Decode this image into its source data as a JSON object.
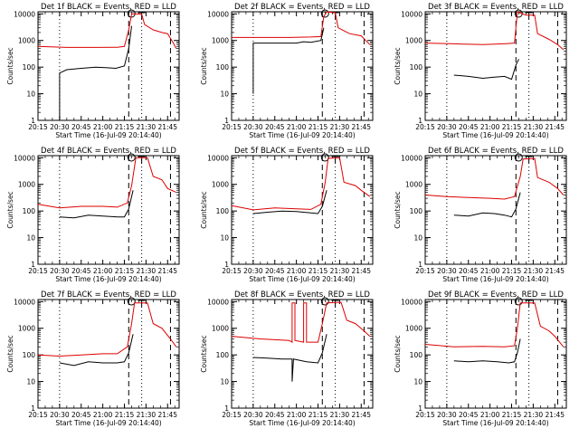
{
  "figure": {
    "title_template": "Det {n}f BLACK = Events, RED = LLD",
    "xlabel": "Start Time (16-Jul-09 20:14:40)",
    "ylabel": "Counts/sec"
  },
  "chart_data": {
    "type": "line",
    "x_ticks": [
      "20:15",
      "20:30",
      "20:45",
      "21:00",
      "21:15",
      "21:30",
      "21:45"
    ],
    "x_tick_minutes": [
      0,
      15,
      30,
      45,
      60,
      75,
      90
    ],
    "x_range_minutes": [
      0,
      98
    ],
    "y_scale": "log",
    "y_range": [
      1,
      12000
    ],
    "y_ticks": [
      "1",
      "10",
      "100",
      "1000",
      "10000"
    ],
    "y_tick_values": [
      1,
      10,
      100,
      1000,
      10000
    ],
    "vertical_lines": [
      {
        "style": "dotted",
        "minute": 15
      },
      {
        "style": "dashed",
        "minute": 63
      },
      {
        "style": "dotted",
        "minute": 72
      },
      {
        "style": "dashed",
        "minute": 92
      }
    ],
    "colors": {
      "events": "#000000",
      "lld": "#dd0000"
    },
    "panels": [
      {
        "title": "Det 1f BLACK = Events, RED = LLD",
        "events": [
          [
            15,
            1
          ],
          [
            15,
            60
          ],
          [
            20,
            80
          ],
          [
            30,
            90
          ],
          [
            40,
            100
          ],
          [
            47,
            95
          ],
          [
            54,
            90
          ],
          [
            60,
            110
          ],
          [
            63,
            500
          ],
          [
            65,
            3500
          ]
        ],
        "lld": [
          [
            0,
            600
          ],
          [
            20,
            550
          ],
          [
            40,
            550
          ],
          [
            55,
            560
          ],
          [
            60,
            600
          ],
          [
            63,
            2500
          ],
          [
            65,
            10000
          ],
          [
            72,
            9800
          ],
          [
            74,
            4000
          ],
          [
            80,
            2500
          ],
          [
            86,
            2000
          ],
          [
            90,
            1800
          ],
          [
            94,
            800
          ],
          [
            96,
            500
          ]
        ]
      },
      {
        "title": "Det 2f BLACK = Events, RED = LLD",
        "events": [
          [
            15,
            10
          ],
          [
            15,
            800
          ],
          [
            30,
            800
          ],
          [
            45,
            800
          ],
          [
            50,
            900
          ],
          [
            55,
            850
          ],
          [
            62,
            1000
          ],
          [
            64,
            3000
          ]
        ],
        "lld": [
          [
            0,
            1300
          ],
          [
            20,
            1300
          ],
          [
            40,
            1300
          ],
          [
            55,
            1350
          ],
          [
            62,
            1400
          ],
          [
            64,
            8000
          ],
          [
            66,
            12000
          ],
          [
            72,
            11000
          ],
          [
            74,
            3000
          ],
          [
            82,
            1800
          ],
          [
            90,
            1500
          ],
          [
            96,
            700
          ]
        ]
      },
      {
        "title": "Det 3f BLACK = Events, RED = LLD",
        "events": [
          [
            20,
            50
          ],
          [
            30,
            45
          ],
          [
            40,
            38
          ],
          [
            48,
            42
          ],
          [
            55,
            45
          ],
          [
            60,
            35
          ],
          [
            63,
            120
          ],
          [
            65,
            200
          ]
        ],
        "lld": [
          [
            0,
            800
          ],
          [
            20,
            750
          ],
          [
            40,
            700
          ],
          [
            55,
            750
          ],
          [
            62,
            800
          ],
          [
            64,
            12000
          ],
          [
            70,
            9000
          ],
          [
            76,
            9000
          ],
          [
            78,
            1800
          ],
          [
            86,
            1100
          ],
          [
            92,
            700
          ],
          [
            96,
            450
          ]
        ]
      },
      {
        "title": "Det 4f BLACK = Events, RED = LLD",
        "events": [
          [
            15,
            60
          ],
          [
            25,
            55
          ],
          [
            35,
            70
          ],
          [
            45,
            65
          ],
          [
            55,
            60
          ],
          [
            60,
            60
          ],
          [
            63,
            120
          ],
          [
            66,
            600
          ]
        ],
        "lld": [
          [
            0,
            180
          ],
          [
            15,
            130
          ],
          [
            30,
            150
          ],
          [
            45,
            150
          ],
          [
            55,
            140
          ],
          [
            62,
            200
          ],
          [
            65,
            900
          ],
          [
            68,
            10000
          ],
          [
            76,
            10000
          ],
          [
            80,
            2000
          ],
          [
            86,
            1500
          ],
          [
            90,
            700
          ],
          [
            96,
            500
          ]
        ]
      },
      {
        "title": "Det 5f BLACK = Events, RED = LLD",
        "events": [
          [
            15,
            80
          ],
          [
            25,
            90
          ],
          [
            35,
            100
          ],
          [
            45,
            95
          ],
          [
            55,
            85
          ],
          [
            60,
            80
          ],
          [
            63,
            150
          ],
          [
            66,
            600
          ]
        ],
        "lld": [
          [
            0,
            160
          ],
          [
            15,
            110
          ],
          [
            30,
            130
          ],
          [
            45,
            120
          ],
          [
            55,
            115
          ],
          [
            62,
            180
          ],
          [
            65,
            1200
          ],
          [
            67,
            9500
          ],
          [
            75,
            10000
          ],
          [
            78,
            1200
          ],
          [
            86,
            900
          ],
          [
            90,
            600
          ],
          [
            96,
            350
          ]
        ]
      },
      {
        "title": "Det 6f BLACK = Events, RED = LLD",
        "events": [
          [
            20,
            70
          ],
          [
            30,
            65
          ],
          [
            40,
            85
          ],
          [
            48,
            80
          ],
          [
            55,
            70
          ],
          [
            60,
            60
          ],
          [
            63,
            120
          ],
          [
            66,
            500
          ]
        ],
        "lld": [
          [
            0,
            400
          ],
          [
            15,
            350
          ],
          [
            30,
            320
          ],
          [
            45,
            300
          ],
          [
            55,
            280
          ],
          [
            62,
            350
          ],
          [
            66,
            2000
          ],
          [
            68,
            9000
          ],
          [
            76,
            9500
          ],
          [
            78,
            1800
          ],
          [
            86,
            1200
          ],
          [
            92,
            700
          ],
          [
            96,
            400
          ]
        ]
      },
      {
        "title": "Det 7f BLACK = Events, RED = LLD",
        "events": [
          [
            15,
            50
          ],
          [
            25,
            40
          ],
          [
            35,
            55
          ],
          [
            45,
            50
          ],
          [
            55,
            50
          ],
          [
            60,
            55
          ],
          [
            63,
            120
          ],
          [
            66,
            600
          ]
        ],
        "lld": [
          [
            0,
            100
          ],
          [
            15,
            90
          ],
          [
            30,
            100
          ],
          [
            45,
            110
          ],
          [
            55,
            110
          ],
          [
            62,
            200
          ],
          [
            65,
            1500
          ],
          [
            67,
            9000
          ],
          [
            76,
            9000
          ],
          [
            80,
            1500
          ],
          [
            86,
            1000
          ],
          [
            92,
            400
          ],
          [
            96,
            200
          ]
        ]
      },
      {
        "title": "Det 8f BLACK = Events, RED = LLD",
        "events": [
          [
            15,
            80
          ],
          [
            25,
            75
          ],
          [
            35,
            70
          ],
          [
            42,
            70
          ],
          [
            42,
            10
          ],
          [
            43,
            70
          ],
          [
            52,
            55
          ],
          [
            60,
            50
          ],
          [
            63,
            120
          ],
          [
            66,
            600
          ]
        ],
        "lld": [
          [
            0,
            500
          ],
          [
            20,
            400
          ],
          [
            40,
            350
          ],
          [
            42,
            300
          ],
          [
            42,
            9000
          ],
          [
            44,
            9000
          ],
          [
            44,
            350
          ],
          [
            50,
            300
          ],
          [
            50,
            9000
          ],
          [
            52,
            9000
          ],
          [
            52,
            300
          ],
          [
            60,
            300
          ],
          [
            63,
            1500
          ],
          [
            66,
            9000
          ],
          [
            76,
            9500
          ],
          [
            80,
            2000
          ],
          [
            86,
            1500
          ],
          [
            92,
            800
          ],
          [
            96,
            500
          ]
        ]
      },
      {
        "title": "Det 9f BLACK = Events, RED = LLD",
        "events": [
          [
            20,
            60
          ],
          [
            30,
            55
          ],
          [
            40,
            60
          ],
          [
            50,
            55
          ],
          [
            58,
            50
          ],
          [
            62,
            55
          ],
          [
            64,
            120
          ],
          [
            66,
            400
          ]
        ],
        "lld": [
          [
            0,
            250
          ],
          [
            20,
            200
          ],
          [
            40,
            210
          ],
          [
            55,
            200
          ],
          [
            62,
            220
          ],
          [
            64,
            1000
          ],
          [
            66,
            9000
          ],
          [
            76,
            9000
          ],
          [
            80,
            1200
          ],
          [
            86,
            800
          ],
          [
            90,
            500
          ],
          [
            96,
            200
          ]
        ]
      }
    ]
  }
}
